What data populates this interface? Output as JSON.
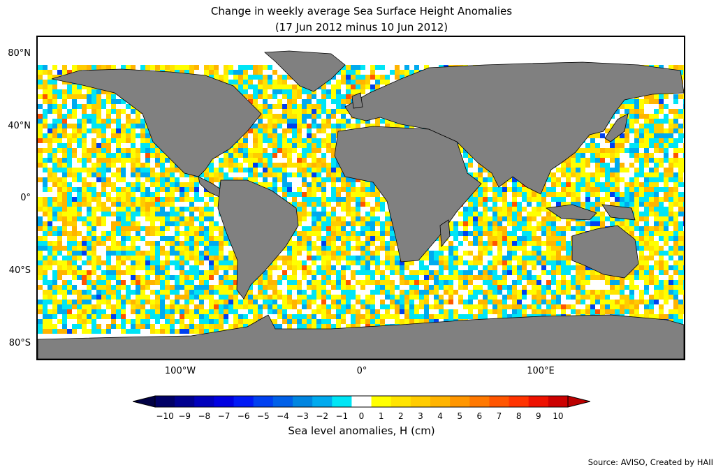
{
  "title": {
    "line1": "Change in weekly average Sea Surface Height Anomalies",
    "line2": "(17 Jun 2012 minus 10 Jun 2012)"
  },
  "axes": {
    "lat_labels": [
      "80°N",
      "40°N",
      "0°",
      "40°S",
      "80°S"
    ],
    "lon_labels": [
      "100°W",
      "0°",
      "100°E"
    ]
  },
  "colorbar": {
    "label": "Sea level anomalies, H (cm)",
    "ticks": [
      "−10",
      "−9",
      "−8",
      "−7",
      "−6",
      "−5",
      "−4",
      "−3",
      "−2",
      "−1",
      "0",
      "1",
      "2",
      "3",
      "4",
      "5",
      "6",
      "7",
      "8",
      "9",
      "10"
    ],
    "colors": [
      "#000066",
      "#00008f",
      "#0000bb",
      "#0000e0",
      "#0019f5",
      "#0040f0",
      "#0060e8",
      "#0085e0",
      "#00aaee",
      "#00e5f5",
      "#ffffff",
      "#ffff00",
      "#ffe400",
      "#ffcc00",
      "#ffb400",
      "#ff9600",
      "#ff7800",
      "#ff5500",
      "#ff3300",
      "#ee1100",
      "#cc0000"
    ],
    "under_color": "#000044",
    "over_color": "#bb0000"
  },
  "colors": {
    "land": "#808080",
    "no_data": "#ffffff"
  },
  "source": "Source: AVISO, Created by HAII"
}
